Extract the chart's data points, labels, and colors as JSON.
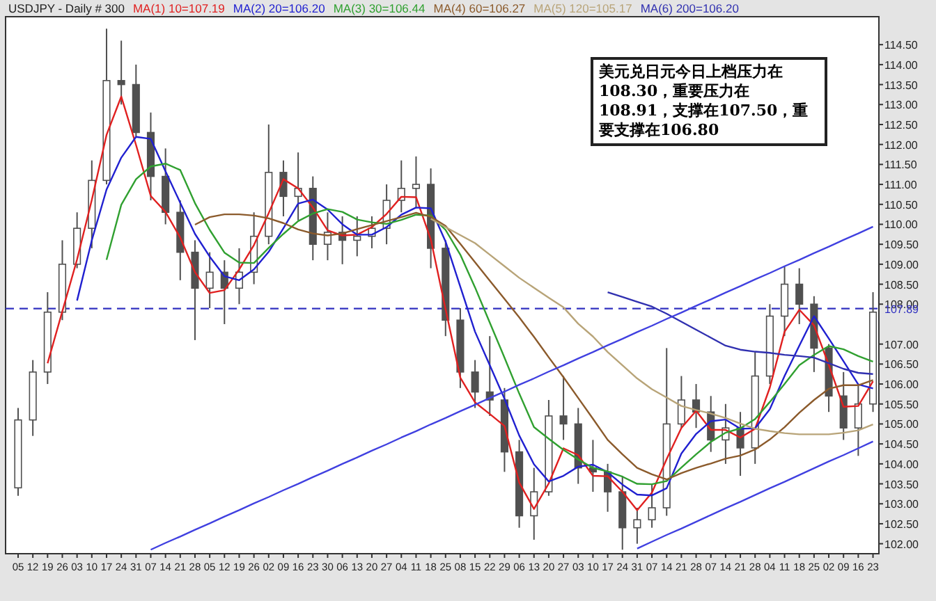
{
  "chart_data": {
    "type": "candlestick",
    "title": "USDJPY - Daily # 300",
    "legend": "top",
    "color": "#505050",
    "categories": [
      "05",
      "12",
      "19",
      "26",
      "03",
      "10",
      "17",
      "24",
      "31",
      "07",
      "14",
      "21",
      "28",
      "05",
      "12",
      "19",
      "26",
      "02",
      "09",
      "16",
      "23",
      "30",
      "06",
      "13",
      "20",
      "27",
      "04",
      "11",
      "18",
      "25",
      "08",
      "15",
      "22",
      "29",
      "06",
      "13",
      "20",
      "27",
      "03",
      "10",
      "17",
      "24",
      "31",
      "07",
      "14",
      "21",
      "28",
      "07",
      "14",
      "21",
      "28",
      "04",
      "11",
      "18",
      "25",
      "02",
      "09",
      "16",
      "23"
    ],
    "ohlc": [
      [
        103.4,
        105.4,
        103.2,
        105.1
      ],
      [
        105.1,
        106.6,
        104.7,
        106.3
      ],
      [
        106.3,
        108.3,
        106.0,
        107.8
      ],
      [
        107.8,
        109.6,
        107.6,
        109.0
      ],
      [
        109.0,
        110.3,
        108.9,
        109.9
      ],
      [
        109.9,
        111.6,
        109.4,
        111.1
      ],
      [
        111.1,
        114.9,
        111.0,
        113.6
      ],
      [
        113.6,
        114.6,
        113.0,
        113.5
      ],
      [
        113.5,
        114.0,
        112.2,
        112.3
      ],
      [
        112.3,
        112.8,
        110.6,
        111.2
      ],
      [
        111.2,
        111.9,
        110.0,
        110.3
      ],
      [
        110.3,
        110.6,
        108.6,
        109.3
      ],
      [
        109.3,
        109.6,
        107.1,
        108.4
      ],
      [
        108.4,
        109.3,
        107.9,
        108.8
      ],
      [
        108.8,
        109.1,
        107.5,
        108.4
      ],
      [
        108.4,
        109.4,
        108.0,
        108.8
      ],
      [
        108.8,
        110.3,
        108.5,
        109.7
      ],
      [
        109.7,
        112.5,
        109.5,
        111.3
      ],
      [
        111.3,
        111.6,
        110.2,
        110.7
      ],
      [
        110.7,
        111.8,
        110.1,
        110.9
      ],
      [
        110.9,
        111.2,
        109.1,
        109.5
      ],
      [
        109.5,
        110.3,
        109.1,
        109.8
      ],
      [
        109.8,
        110.2,
        109.0,
        109.6
      ],
      [
        109.6,
        110.2,
        109.2,
        109.7
      ],
      [
        109.7,
        110.2,
        109.4,
        109.9
      ],
      [
        109.9,
        111.0,
        109.5,
        110.6
      ],
      [
        110.6,
        111.6,
        110.3,
        110.9
      ],
      [
        110.9,
        111.7,
        110.4,
        111.0
      ],
      [
        111.0,
        111.4,
        108.9,
        109.4
      ],
      [
        109.4,
        109.6,
        107.2,
        107.6
      ],
      [
        107.6,
        107.9,
        105.9,
        106.3
      ],
      [
        106.3,
        106.6,
        105.4,
        105.8
      ],
      [
        105.8,
        107.2,
        105.2,
        105.6
      ],
      [
        105.6,
        105.9,
        103.8,
        104.3
      ],
      [
        104.3,
        104.6,
        102.4,
        102.7
      ],
      [
        102.7,
        103.9,
        102.1,
        103.3
      ],
      [
        103.3,
        105.6,
        103.2,
        105.2
      ],
      [
        105.2,
        106.2,
        104.6,
        105.0
      ],
      [
        105.0,
        105.4,
        103.5,
        103.9
      ],
      [
        103.9,
        104.6,
        103.3,
        103.8
      ],
      [
        103.8,
        104.0,
        102.8,
        103.3
      ],
      [
        103.3,
        103.7,
        101.85,
        102.4
      ],
      [
        102.4,
        102.9,
        102.0,
        102.6
      ],
      [
        102.6,
        103.5,
        102.4,
        102.9
      ],
      [
        102.9,
        106.9,
        102.7,
        105.0
      ],
      [
        105.0,
        106.2,
        104.9,
        105.6
      ],
      [
        105.6,
        106.0,
        104.9,
        105.3
      ],
      [
        105.3,
        105.7,
        104.3,
        104.6
      ],
      [
        104.6,
        105.5,
        104.0,
        104.9
      ],
      [
        104.9,
        105.3,
        103.7,
        104.4
      ],
      [
        104.4,
        106.8,
        104.0,
        106.2
      ],
      [
        106.2,
        108.0,
        106.0,
        107.7
      ],
      [
        107.7,
        108.95,
        107.2,
        108.5
      ],
      [
        108.5,
        108.9,
        107.5,
        108.0
      ],
      [
        108.0,
        108.2,
        106.3,
        106.9
      ],
      [
        106.9,
        107.0,
        105.3,
        105.7
      ],
      [
        105.7,
        106.3,
        104.6,
        104.9
      ],
      [
        104.9,
        106.0,
        104.2,
        105.5
      ],
      [
        105.5,
        108.3,
        105.3,
        107.8
      ]
    ],
    "series": [
      {
        "name": "MA(1) 10=107.19",
        "type": "line",
        "color": "#e02020",
        "values": [
          null,
          null,
          106.52,
          107.82,
          109.12,
          110.61,
          112.24,
          113.2,
          111.99,
          110.71,
          110.31,
          109.67,
          108.8,
          108.28,
          108.35,
          108.87,
          109.48,
          110.28,
          111.13,
          110.9,
          110.42,
          109.85,
          109.72,
          109.74,
          109.93,
          110.26,
          110.69,
          110.68,
          109.62,
          107.88,
          106.16,
          105.54,
          105.25,
          104.95,
          103.53,
          102.87,
          103.51,
          104.39,
          104.22,
          103.7,
          103.69,
          103.3,
          102.84,
          103.28,
          104.12,
          104.9,
          105.33,
          104.85,
          104.85,
          104.66,
          104.88,
          105.91,
          107.31,
          107.86,
          107.47,
          106.48,
          105.43,
          105.45,
          106.07
        ]
      },
      {
        "name": "MA(2) 20=106.20",
        "type": "line",
        "color": "#2020d0",
        "values": [
          null,
          null,
          null,
          null,
          108.09,
          109.6,
          110.87,
          111.67,
          112.19,
          112.14,
          111.33,
          110.54,
          109.76,
          109.19,
          108.7,
          108.6,
          108.87,
          109.31,
          109.9,
          110.52,
          110.62,
          110.37,
          110.0,
          109.74,
          109.74,
          109.93,
          110.24,
          110.42,
          110.4,
          109.57,
          108.44,
          107.31,
          106.47,
          105.63,
          104.71,
          103.99,
          103.56,
          103.7,
          103.93,
          103.98,
          103.79,
          103.48,
          103.23,
          103.21,
          103.39,
          104.26,
          104.75,
          105.07,
          105.11,
          104.88,
          104.89,
          105.37,
          106.2,
          106.96,
          107.7,
          107.14,
          106.57,
          105.99,
          105.89
        ]
      },
      {
        "name": "MA(3) 30=106.44",
        "type": "line",
        "color": "#30a030",
        "values": [
          null,
          null,
          null,
          null,
          null,
          null,
          109.11,
          110.49,
          111.13,
          111.45,
          111.52,
          111.36,
          110.53,
          109.86,
          109.29,
          109.04,
          109.03,
          109.41,
          109.76,
          110.08,
          110.27,
          110.38,
          110.31,
          110.12,
          110.05,
          110.01,
          110.11,
          110.24,
          110.22,
          109.86,
          109.24,
          108.42,
          107.54,
          106.66,
          105.76,
          104.92,
          104.63,
          104.35,
          104.11,
          103.9,
          103.81,
          103.68,
          103.5,
          103.49,
          103.57,
          103.91,
          104.24,
          104.55,
          104.78,
          104.89,
          105.12,
          105.55,
          106.0,
          106.47,
          106.73,
          106.95,
          106.87,
          106.7,
          106.56
        ]
      },
      {
        "name": "MA(4) 60=106.27",
        "type": "line",
        "color": "#8b5a2b",
        "values": [
          null,
          null,
          null,
          null,
          null,
          null,
          null,
          null,
          null,
          null,
          null,
          null,
          109.99,
          110.18,
          110.25,
          110.25,
          110.22,
          110.15,
          110.03,
          109.87,
          109.77,
          109.72,
          109.77,
          109.88,
          109.98,
          110.08,
          110.18,
          110.29,
          110.19,
          109.96,
          109.51,
          109.05,
          108.59,
          108.13,
          107.67,
          107.18,
          106.67,
          106.17,
          105.65,
          105.13,
          104.6,
          104.24,
          103.9,
          103.74,
          103.61,
          103.77,
          103.9,
          104.01,
          104.13,
          104.21,
          104.36,
          104.61,
          104.92,
          105.28,
          105.6,
          105.88,
          105.97,
          105.97,
          106.1
        ]
      },
      {
        "name": "MA(5) 120=105.17",
        "type": "line",
        "color": "#b8a478",
        "values": [
          null,
          null,
          null,
          null,
          null,
          null,
          null,
          null,
          null,
          null,
          null,
          null,
          null,
          null,
          null,
          null,
          null,
          null,
          null,
          null,
          null,
          null,
          null,
          null,
          null,
          null,
          null,
          null,
          110.14,
          109.93,
          109.73,
          109.53,
          109.24,
          108.95,
          108.66,
          108.41,
          108.16,
          107.92,
          107.51,
          107.19,
          106.8,
          106.47,
          106.14,
          105.87,
          105.66,
          105.45,
          105.35,
          105.26,
          105.15,
          105.01,
          104.88,
          104.82,
          104.77,
          104.74,
          104.74,
          104.74,
          104.78,
          104.84,
          104.99
        ]
      },
      {
        "name": "MA(6) 200=106.20",
        "type": "line",
        "color": "#3030b0",
        "values": [
          null,
          null,
          null,
          null,
          null,
          null,
          null,
          null,
          null,
          null,
          null,
          null,
          null,
          null,
          null,
          null,
          null,
          null,
          null,
          null,
          null,
          null,
          null,
          null,
          null,
          null,
          null,
          null,
          null,
          null,
          null,
          null,
          null,
          null,
          null,
          null,
          null,
          null,
          null,
          null,
          108.3,
          108.18,
          108.06,
          107.94,
          107.76,
          107.56,
          107.36,
          107.16,
          106.96,
          106.86,
          106.81,
          106.78,
          106.73,
          106.7,
          106.66,
          106.52,
          106.38,
          106.28,
          106.25
        ]
      },
      {
        "type": "line",
        "color": "#4040e0",
        "values": [
          null,
          null,
          null,
          null,
          null,
          null,
          null,
          null,
          null,
          101.85,
          102.02,
          102.18,
          102.35,
          102.51,
          102.68,
          102.84,
          103.01,
          103.17,
          103.34,
          103.5,
          103.67,
          103.83,
          104.0,
          104.16,
          104.33,
          104.49,
          104.66,
          104.82,
          104.99,
          105.15,
          105.32,
          105.48,
          105.65,
          105.81,
          105.98,
          106.14,
          106.31,
          106.47,
          106.64,
          106.8,
          106.97,
          107.13,
          107.3,
          107.46,
          107.63,
          107.79,
          107.96,
          108.12,
          108.29,
          108.45,
          108.62,
          108.78,
          108.95,
          109.11,
          109.28,
          109.44,
          109.61,
          109.77,
          109.94
        ]
      },
      {
        "type": "line",
        "color": "#4040e0",
        "values": [
          null,
          null,
          null,
          null,
          null,
          null,
          null,
          null,
          null,
          null,
          null,
          null,
          null,
          null,
          null,
          null,
          null,
          null,
          null,
          null,
          null,
          null,
          null,
          null,
          null,
          null,
          null,
          null,
          null,
          null,
          null,
          null,
          null,
          null,
          null,
          null,
          null,
          null,
          null,
          null,
          null,
          null,
          101.88,
          102.05,
          102.22,
          102.38,
          102.55,
          102.72,
          102.89,
          103.05,
          103.22,
          103.39,
          103.55,
          103.72,
          103.89,
          104.06,
          104.22,
          104.39,
          104.56
        ]
      }
    ],
    "ref_lines": [
      {
        "axis": "y",
        "value": 107.89,
        "label": "107.89",
        "color": "#3030c0",
        "line_style": "dashed"
      }
    ],
    "annotations": [
      "美元兑日元今日上档压力在108.30，重要压力在108.91，支撑在107.50，重要支撑在106.80"
    ],
    "ylim": [
      101.75,
      115.2
    ],
    "yticks": [
      {
        "value": 102,
        "label": "102.00"
      },
      {
        "value": 102.5,
        "label": "102.50"
      },
      {
        "value": 103,
        "label": "103.00"
      },
      {
        "value": 103.5,
        "label": "103.50"
      },
      {
        "value": 104,
        "label": "104.00"
      },
      {
        "value": 104.5,
        "label": "104.50"
      },
      {
        "value": 105,
        "label": "105.00"
      },
      {
        "value": 105.5,
        "label": "105.50"
      },
      {
        "value": 106,
        "label": "106.00"
      },
      {
        "value": 106.5,
        "label": "106.50"
      },
      {
        "value": 107,
        "label": "107.00"
      },
      {
        "value": 108,
        "label": "108.00"
      },
      {
        "value": 108.5,
        "label": "108.50"
      },
      {
        "value": 109,
        "label": "109.00"
      },
      {
        "value": 109.5,
        "label": "109.50"
      },
      {
        "value": 110,
        "label": "110.00"
      },
      {
        "value": 110.5,
        "label": "110.50"
      },
      {
        "value": 111,
        "label": "111.00"
      },
      {
        "value": 111.5,
        "label": "111.50"
      },
      {
        "value": 112,
        "label": "112.00"
      },
      {
        "value": 112.5,
        "label": "112.50"
      },
      {
        "value": 113,
        "label": "113.00"
      },
      {
        "value": 113.5,
        "label": "113.50"
      },
      {
        "value": 114,
        "label": "114.00"
      },
      {
        "value": 114.5,
        "label": "114.50"
      }
    ]
  }
}
